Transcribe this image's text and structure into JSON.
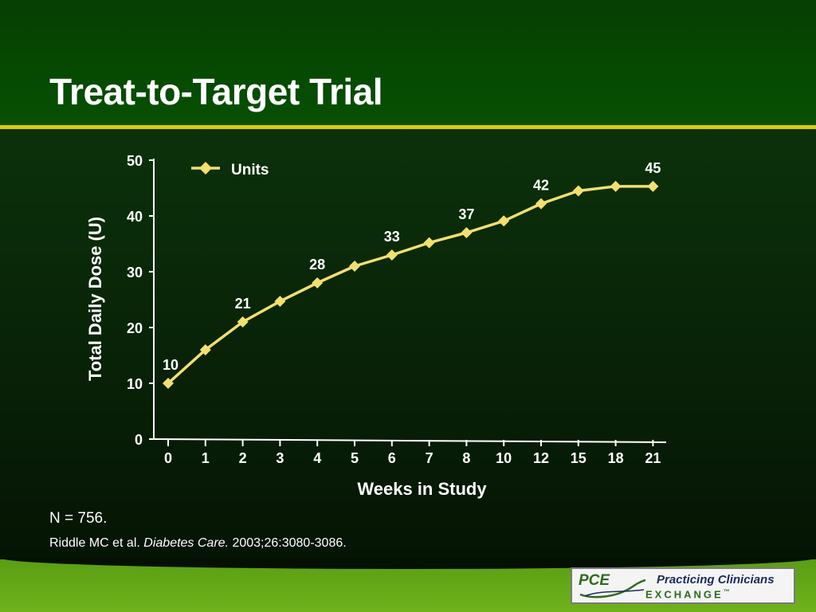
{
  "slide": {
    "title": "Treat-to-Target Trial",
    "note": "N = 756.",
    "citation": {
      "authors": "Riddle MC et al.",
      "journal": "Diabetes Care.",
      "details": "2003;26:3080-3086."
    },
    "logo": {
      "mark": "PCE",
      "line1": "Practicing Clinicians",
      "line2": "EXCHANGE",
      "trademark": "™"
    },
    "colors": {
      "header_green": "#064a02",
      "rule_yellow": "#d9c90f",
      "series_yellow": "#f3df6e",
      "footer_green": "#6fb21c"
    }
  },
  "chart_data": {
    "type": "line",
    "xlabel": "Weeks in Study",
    "ylabel": "Total Daily Dose (U)",
    "categories": [
      "0",
      "1",
      "2",
      "3",
      "4",
      "5",
      "6",
      "7",
      "8",
      "10",
      "12",
      "15",
      "18",
      "21"
    ],
    "series": [
      {
        "name": "Units",
        "values": [
          10,
          16,
          21,
          24.7,
          28,
          31,
          33,
          35.2,
          37,
          39.1,
          42.2,
          44.5,
          45.3,
          45.3
        ],
        "data_labels": [
          "10",
          null,
          "21",
          null,
          "28",
          null,
          "33",
          null,
          "37",
          null,
          "42",
          null,
          null,
          "45"
        ]
      }
    ],
    "ylim": [
      0,
      50
    ],
    "yticks": [
      "0",
      "10",
      "20",
      "30",
      "40",
      "50"
    ],
    "grid": false,
    "legend": "top-left"
  }
}
